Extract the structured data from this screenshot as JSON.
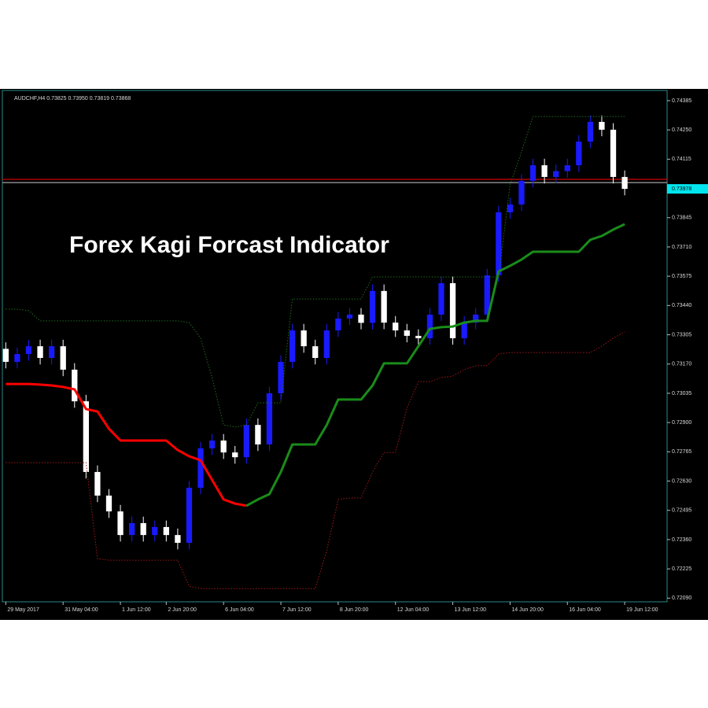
{
  "chart_data": {
    "type": "candlestick",
    "title": "Forex Kagi Forcast Indicator",
    "header": "AUDCHF,H4  0.73825 0.73950 0.73819 0.73868",
    "up_color": "#1a1aff",
    "down_color": "#ffffff",
    "open": [
      0.7324,
      0.7318,
      0.73216,
      0.73252,
      0.73198,
      0.73252,
      0.73144,
      0.72998,
      0.72672,
      0.72563,
      0.7249,
      0.72381,
      0.72436,
      0.72381,
      0.72418,
      0.72381,
      0.72345,
      0.72599,
      0.72781,
      0.72817,
      0.72762,
      0.7274,
      0.72889,
      0.72799,
      0.73035,
      0.7318,
      0.73325,
      0.73252,
      0.73198,
      0.73325,
      0.7338,
      0.73398,
      0.7336,
      0.73507,
      0.73361,
      0.73325,
      0.733,
      0.73289,
      0.73398,
      0.73543,
      0.73289,
      0.73361,
      0.73398,
      0.73579,
      0.7387,
      0.73906,
      0.74015,
      0.74087,
      0.74033,
      0.7406,
      0.74087,
      0.74196,
      0.74287,
      0.74251,
      0.74033
    ],
    "high": [
      0.7327,
      0.73246,
      0.73282,
      0.73282,
      0.73282,
      0.73282,
      0.73174,
      0.73028,
      0.72702,
      0.72593,
      0.7252,
      0.72466,
      0.72466,
      0.72448,
      0.72448,
      0.72411,
      0.72629,
      0.72811,
      0.72847,
      0.72847,
      0.72792,
      0.72919,
      0.72919,
      0.73065,
      0.7321,
      0.73355,
      0.73355,
      0.73282,
      0.73355,
      0.7341,
      0.73428,
      0.73428,
      0.73537,
      0.73537,
      0.73391,
      0.73355,
      0.7333,
      0.73428,
      0.73573,
      0.73573,
      0.73391,
      0.73428,
      0.73609,
      0.739,
      0.73936,
      0.74045,
      0.74117,
      0.74117,
      0.7409,
      0.74117,
      0.74226,
      0.74317,
      0.74317,
      0.74281,
      0.74063
    ],
    "low": [
      0.7315,
      0.7315,
      0.73186,
      0.73168,
      0.73168,
      0.73114,
      0.72968,
      0.72642,
      0.72533,
      0.7246,
      0.72351,
      0.72351,
      0.72351,
      0.72351,
      0.72351,
      0.72315,
      0.72315,
      0.72569,
      0.72751,
      0.72732,
      0.7271,
      0.7271,
      0.72769,
      0.72769,
      0.73005,
      0.7315,
      0.73222,
      0.73168,
      0.73168,
      0.73295,
      0.7335,
      0.7333,
      0.7333,
      0.73331,
      0.73295,
      0.7327,
      0.73259,
      0.73259,
      0.73368,
      0.73259,
      0.73259,
      0.73331,
      0.73368,
      0.73549,
      0.7384,
      0.73876,
      0.73985,
      0.74003,
      0.74003,
      0.7403,
      0.74057,
      0.74166,
      0.74221,
      0.74003,
      0.73948
    ],
    "close": [
      0.7318,
      0.73216,
      0.73252,
      0.73198,
      0.73252,
      0.73144,
      0.72998,
      0.72672,
      0.72563,
      0.7249,
      0.72381,
      0.72436,
      0.72381,
      0.72418,
      0.72381,
      0.72345,
      0.72599,
      0.72781,
      0.72817,
      0.72762,
      0.7274,
      0.72889,
      0.72799,
      0.73035,
      0.7318,
      0.73325,
      0.73252,
      0.73198,
      0.73325,
      0.7338,
      0.73398,
      0.7336,
      0.73507,
      0.73361,
      0.73325,
      0.733,
      0.73289,
      0.73398,
      0.73543,
      0.73289,
      0.73361,
      0.73398,
      0.73579,
      0.7387,
      0.73906,
      0.74015,
      0.74087,
      0.74033,
      0.7406,
      0.74087,
      0.74196,
      0.74287,
      0.74251,
      0.74033,
      0.73978
    ],
    "lines": [
      {
        "color": "#ff0000",
        "style": "solid",
        "values": [
          0.73078,
          0.73078,
          0.73078,
          0.73075,
          0.73071,
          0.73064,
          0.73053,
          0.72962,
          0.72951,
          0.72871,
          0.72817,
          0.72817,
          0.72817,
          0.72817,
          0.72817,
          0.72773,
          0.72744,
          0.72726,
          0.72635,
          0.72545,
          0.72526,
          0.72516,
          null,
          null,
          null,
          null,
          null,
          null,
          null,
          null,
          null,
          null,
          null,
          null,
          null,
          null,
          null,
          null,
          null,
          null,
          null,
          null,
          null,
          null,
          null,
          null,
          null,
          null,
          null,
          null,
          null,
          null,
          null,
          null,
          null
        ]
      },
      {
        "color": "#1a8c1a",
        "style": "solid",
        "values": [
          null,
          null,
          null,
          null,
          null,
          null,
          null,
          null,
          null,
          null,
          null,
          null,
          null,
          null,
          null,
          null,
          null,
          null,
          null,
          null,
          null,
          0.72516,
          0.72545,
          0.7257,
          0.72672,
          0.72799,
          0.72799,
          0.72799,
          0.72889,
          0.73006,
          0.73006,
          0.73006,
          0.73071,
          0.73173,
          0.73173,
          0.73173,
          0.73252,
          0.73332,
          0.7334,
          0.73343,
          0.73361,
          0.73369,
          0.73369,
          0.73597,
          0.73623,
          0.73652,
          0.73688,
          0.73688,
          0.73688,
          0.73688,
          0.73688,
          0.73743,
          0.73761,
          0.7379,
          0.73815
        ]
      },
      {
        "color": "#1f6b1f",
        "style": "dotted",
        "values": [
          0.73423,
          0.73423,
          0.73416,
          0.73369,
          0.73369,
          0.73369,
          0.73369,
          0.73369,
          0.73369,
          0.73369,
          0.73369,
          0.73369,
          0.73369,
          0.73369,
          0.73369,
          0.73369,
          0.73361,
          0.73289,
          0.73107,
          0.72889,
          0.72879,
          0.72889,
          0.72991,
          0.72991,
          0.72991,
          0.7347,
          0.7347,
          0.7347,
          0.7347,
          0.7347,
          0.7347,
          0.7347,
          0.73572,
          0.73572,
          0.73572,
          0.73572,
          0.73572,
          0.73572,
          0.73572,
          0.73572,
          0.73572,
          0.73572,
          0.73572,
          0.73572,
          0.73997,
          0.74149,
          0.74312,
          0.74312,
          0.74312,
          0.74312,
          0.74312,
          0.74312,
          0.74312,
          0.74312,
          0.74312
        ]
      },
      {
        "color": "#a01818",
        "style": "dotted",
        "values": [
          0.72715,
          0.72715,
          0.72715,
          0.72715,
          0.72715,
          0.72715,
          0.72715,
          0.72715,
          0.72272,
          0.72265,
          0.72265,
          0.72265,
          0.72265,
          0.72265,
          0.72265,
          0.72265,
          0.72145,
          0.72134,
          0.72134,
          0.72134,
          0.72134,
          0.72134,
          0.72134,
          0.72134,
          0.72134,
          0.72134,
          0.72134,
          0.72134,
          0.72309,
          0.72545,
          0.72552,
          0.72552,
          0.72672,
          0.72762,
          0.72762,
          0.72967,
          0.73089,
          0.73089,
          0.73107,
          0.73115,
          0.73144,
          0.73162,
          0.73162,
          0.73216,
          0.73223,
          0.73223,
          0.73223,
          0.73223,
          0.73223,
          0.73223,
          0.73223,
          0.73223,
          0.73252,
          0.73289,
          0.73318
        ]
      }
    ],
    "hlines": [
      {
        "value": 0.74022,
        "color": "#b00000"
      },
      {
        "value": 0.74007,
        "color": "#8a8a8a"
      }
    ],
    "current_price": 0.73978,
    "current_price_color": "#00e5ee",
    "ylim": [
      0.72073,
      0.74432
    ],
    "yticks": [
      0.74385,
      {
        "value": 0.7425,
        "label": "0.74250"
      },
      0.74115,
      {
        "value": 0.7398,
        "label": "0.73980"
      },
      0.73845,
      {
        "value": 0.7371,
        "label": "0.73710"
      },
      0.73575,
      {
        "value": 0.7344,
        "label": "0.73440"
      },
      0.73305,
      {
        "value": 0.7317,
        "label": "0.73170"
      },
      0.73035,
      {
        "value": 0.729,
        "label": "0.72900"
      },
      0.72765,
      {
        "value": 0.7263,
        "label": "0.72630"
      },
      0.72495,
      {
        "value": 0.7236,
        "label": "0.72360"
      },
      0.72225,
      {
        "value": 0.7209,
        "label": "0.72090"
      }
    ],
    "xlim": [
      -0.3,
      57.7
    ],
    "xticks": [
      {
        "value": 0,
        "label": "29 May 2017"
      },
      {
        "value": 5,
        "label": "31 May 04:00"
      },
      {
        "value": 10,
        "label": "1 Jun 12:00"
      },
      {
        "value": 14,
        "label": "2 Jun 20:00"
      },
      {
        "value": 19,
        "label": "6 Jun 04:00"
      },
      {
        "value": 24,
        "label": "7 Jun 12:00"
      },
      {
        "value": 29,
        "label": "8 Jun 20:00"
      },
      {
        "value": 34,
        "label": "12 Jun 04:00"
      },
      {
        "value": 39,
        "label": "13 Jun 12:00"
      },
      {
        "value": 44,
        "label": "14 Jun 20:00"
      },
      {
        "value": 49,
        "label": "16 Jun 04:00"
      },
      {
        "value": 54,
        "label": "19 Jun 12:00"
      }
    ]
  }
}
